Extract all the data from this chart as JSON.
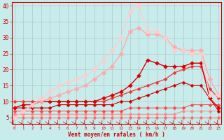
{
  "title": "",
  "xlabel": "Vent moyen/en rafales ( km/h )",
  "ylabel": "",
  "bg_color": "#c8ecec",
  "grid_color": "#b0c8c8",
  "x_values": [
    0,
    1,
    2,
    3,
    4,
    5,
    6,
    7,
    8,
    9,
    10,
    11,
    12,
    13,
    14,
    15,
    16,
    17,
    18,
    19,
    20,
    21,
    22,
    23
  ],
  "lines": [
    {
      "y": [
        5,
        5,
        5,
        5,
        5,
        5,
        5,
        5,
        5,
        5,
        5,
        5,
        5,
        5,
        5,
        5,
        5,
        5,
        5,
        5,
        5,
        5,
        5,
        5
      ],
      "color": "#ff6666",
      "lw": 0.7
    },
    {
      "y": [
        6,
        6,
        6,
        6,
        6,
        6,
        6,
        6,
        6,
        6,
        6,
        6,
        6,
        6,
        6,
        6,
        6,
        6,
        6,
        7,
        7,
        7,
        7,
        7
      ],
      "color": "#ff8888",
      "lw": 0.7
    },
    {
      "y": [
        7,
        7,
        7,
        7,
        7,
        7,
        7,
        7,
        7,
        7,
        7,
        7,
        7,
        8,
        8,
        8,
        8,
        8,
        8,
        8,
        9,
        9,
        9,
        9
      ],
      "color": "#ff4444",
      "lw": 0.7
    },
    {
      "y": [
        8,
        8,
        8,
        8,
        8,
        9,
        9,
        9,
        9,
        9,
        9,
        9,
        10,
        10,
        11,
        12,
        13,
        14,
        15,
        16,
        15,
        15,
        11,
        7
      ],
      "color": "#cc0000",
      "lw": 0.8
    },
    {
      "y": [
        10,
        10,
        10,
        10,
        10,
        10,
        10,
        10,
        10,
        10,
        10,
        11,
        12,
        13,
        14,
        15,
        16,
        17,
        19,
        20,
        21,
        21,
        14,
        11
      ],
      "color": "#ee3333",
      "lw": 0.9
    },
    {
      "y": [
        8,
        9,
        9,
        10,
        10,
        10,
        10,
        10,
        10,
        10,
        11,
        12,
        13,
        15,
        18,
        23,
        22,
        21,
        21,
        21,
        22,
        22,
        11,
        8
      ],
      "color": "#dd0000",
      "lw": 1.0
    },
    {
      "y": [
        5,
        7,
        9,
        10,
        11,
        12,
        13,
        14,
        15,
        17,
        19,
        21,
        25,
        32,
        33,
        31,
        31,
        30,
        27,
        26,
        26,
        26,
        17,
        12
      ],
      "color": "#ffaaaa",
      "lw": 1.0
    },
    {
      "y": [
        5,
        7,
        9,
        11,
        13,
        15,
        16,
        17,
        18,
        20,
        23,
        26,
        30,
        38,
        40,
        32,
        32,
        30,
        26,
        26,
        25,
        25,
        12,
        12
      ],
      "color": "#ffcccc",
      "lw": 1.0
    }
  ],
  "xlim_min": -0.3,
  "xlim_max": 23.3,
  "ylim_min": 3,
  "ylim_max": 41,
  "yticks": [
    5,
    10,
    15,
    20,
    25,
    30,
    35,
    40
  ],
  "xticks": [
    0,
    1,
    2,
    3,
    4,
    5,
    6,
    7,
    8,
    9,
    10,
    11,
    12,
    13,
    14,
    15,
    16,
    17,
    18,
    19,
    20,
    21,
    22,
    23
  ],
  "tick_color": "#cc0000",
  "label_color": "#cc0000",
  "spine_color": "#cc0000"
}
